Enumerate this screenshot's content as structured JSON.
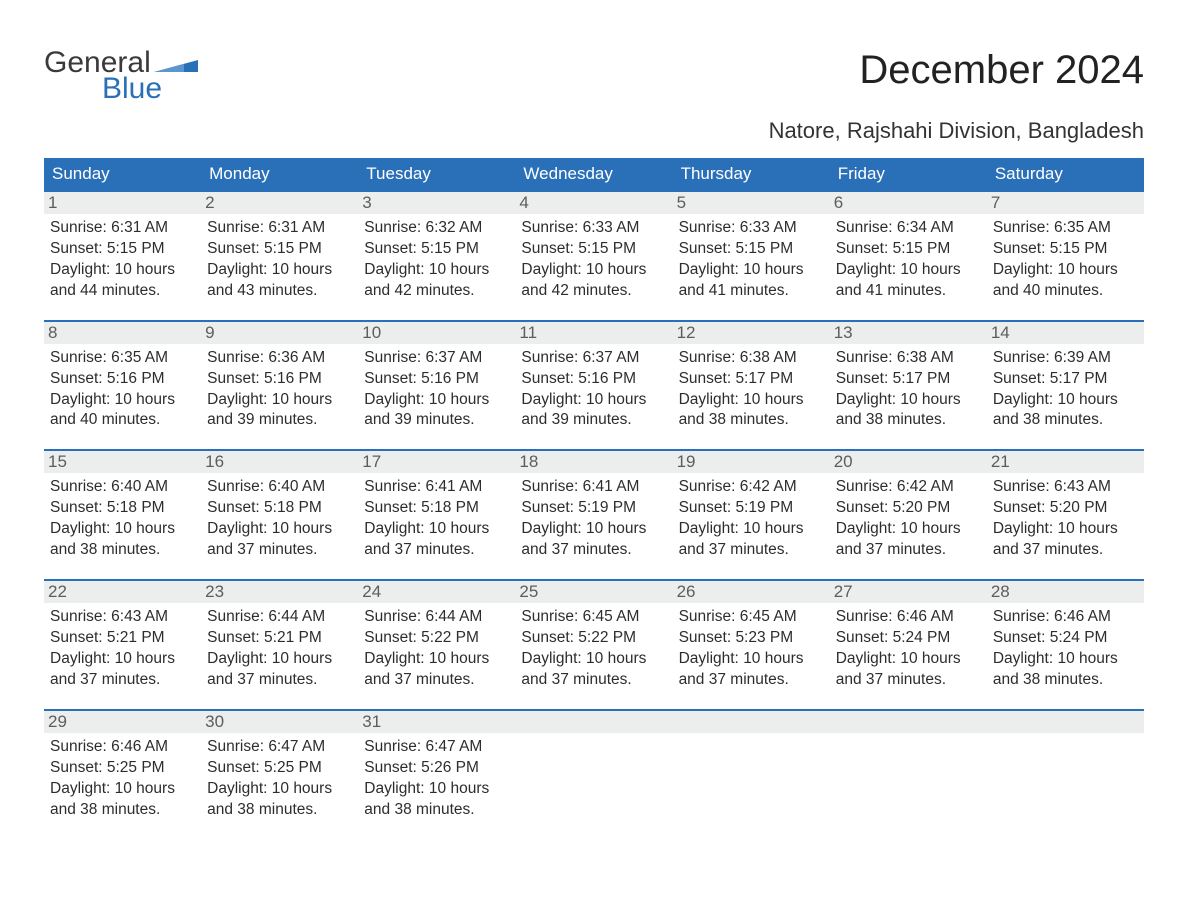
{
  "logo": {
    "text1": "General",
    "text2": "Blue",
    "icon_color": "#2a70b8"
  },
  "title": "December 2024",
  "location": "Natore, Rajshahi Division, Bangladesh",
  "colors": {
    "header_bg": "#2a70b8",
    "header_text": "#ffffff",
    "daynum_bg": "#eceded",
    "daynum_text": "#5d5d5d",
    "body_text": "#2d2d2d",
    "row_border": "#2a70b8"
  },
  "weekdays": [
    "Sunday",
    "Monday",
    "Tuesday",
    "Wednesday",
    "Thursday",
    "Friday",
    "Saturday"
  ],
  "weeks": [
    [
      {
        "n": "1",
        "sr": "6:31 AM",
        "ss": "5:15 PM",
        "dl": "10 hours and 44 minutes."
      },
      {
        "n": "2",
        "sr": "6:31 AM",
        "ss": "5:15 PM",
        "dl": "10 hours and 43 minutes."
      },
      {
        "n": "3",
        "sr": "6:32 AM",
        "ss": "5:15 PM",
        "dl": "10 hours and 42 minutes."
      },
      {
        "n": "4",
        "sr": "6:33 AM",
        "ss": "5:15 PM",
        "dl": "10 hours and 42 minutes."
      },
      {
        "n": "5",
        "sr": "6:33 AM",
        "ss": "5:15 PM",
        "dl": "10 hours and 41 minutes."
      },
      {
        "n": "6",
        "sr": "6:34 AM",
        "ss": "5:15 PM",
        "dl": "10 hours and 41 minutes."
      },
      {
        "n": "7",
        "sr": "6:35 AM",
        "ss": "5:15 PM",
        "dl": "10 hours and 40 minutes."
      }
    ],
    [
      {
        "n": "8",
        "sr": "6:35 AM",
        "ss": "5:16 PM",
        "dl": "10 hours and 40 minutes."
      },
      {
        "n": "9",
        "sr": "6:36 AM",
        "ss": "5:16 PM",
        "dl": "10 hours and 39 minutes."
      },
      {
        "n": "10",
        "sr": "6:37 AM",
        "ss": "5:16 PM",
        "dl": "10 hours and 39 minutes."
      },
      {
        "n": "11",
        "sr": "6:37 AM",
        "ss": "5:16 PM",
        "dl": "10 hours and 39 minutes."
      },
      {
        "n": "12",
        "sr": "6:38 AM",
        "ss": "5:17 PM",
        "dl": "10 hours and 38 minutes."
      },
      {
        "n": "13",
        "sr": "6:38 AM",
        "ss": "5:17 PM",
        "dl": "10 hours and 38 minutes."
      },
      {
        "n": "14",
        "sr": "6:39 AM",
        "ss": "5:17 PM",
        "dl": "10 hours and 38 minutes."
      }
    ],
    [
      {
        "n": "15",
        "sr": "6:40 AM",
        "ss": "5:18 PM",
        "dl": "10 hours and 38 minutes."
      },
      {
        "n": "16",
        "sr": "6:40 AM",
        "ss": "5:18 PM",
        "dl": "10 hours and 37 minutes."
      },
      {
        "n": "17",
        "sr": "6:41 AM",
        "ss": "5:18 PM",
        "dl": "10 hours and 37 minutes."
      },
      {
        "n": "18",
        "sr": "6:41 AM",
        "ss": "5:19 PM",
        "dl": "10 hours and 37 minutes."
      },
      {
        "n": "19",
        "sr": "6:42 AM",
        "ss": "5:19 PM",
        "dl": "10 hours and 37 minutes."
      },
      {
        "n": "20",
        "sr": "6:42 AM",
        "ss": "5:20 PM",
        "dl": "10 hours and 37 minutes."
      },
      {
        "n": "21",
        "sr": "6:43 AM",
        "ss": "5:20 PM",
        "dl": "10 hours and 37 minutes."
      }
    ],
    [
      {
        "n": "22",
        "sr": "6:43 AM",
        "ss": "5:21 PM",
        "dl": "10 hours and 37 minutes."
      },
      {
        "n": "23",
        "sr": "6:44 AM",
        "ss": "5:21 PM",
        "dl": "10 hours and 37 minutes."
      },
      {
        "n": "24",
        "sr": "6:44 AM",
        "ss": "5:22 PM",
        "dl": "10 hours and 37 minutes."
      },
      {
        "n": "25",
        "sr": "6:45 AM",
        "ss": "5:22 PM",
        "dl": "10 hours and 37 minutes."
      },
      {
        "n": "26",
        "sr": "6:45 AM",
        "ss": "5:23 PM",
        "dl": "10 hours and 37 minutes."
      },
      {
        "n": "27",
        "sr": "6:46 AM",
        "ss": "5:24 PM",
        "dl": "10 hours and 37 minutes."
      },
      {
        "n": "28",
        "sr": "6:46 AM",
        "ss": "5:24 PM",
        "dl": "10 hours and 38 minutes."
      }
    ],
    [
      {
        "n": "29",
        "sr": "6:46 AM",
        "ss": "5:25 PM",
        "dl": "10 hours and 38 minutes."
      },
      {
        "n": "30",
        "sr": "6:47 AM",
        "ss": "5:25 PM",
        "dl": "10 hours and 38 minutes."
      },
      {
        "n": "31",
        "sr": "6:47 AM",
        "ss": "5:26 PM",
        "dl": "10 hours and 38 minutes."
      },
      null,
      null,
      null,
      null
    ]
  ],
  "labels": {
    "sunrise": "Sunrise: ",
    "sunset": "Sunset: ",
    "daylight": "Daylight: "
  }
}
